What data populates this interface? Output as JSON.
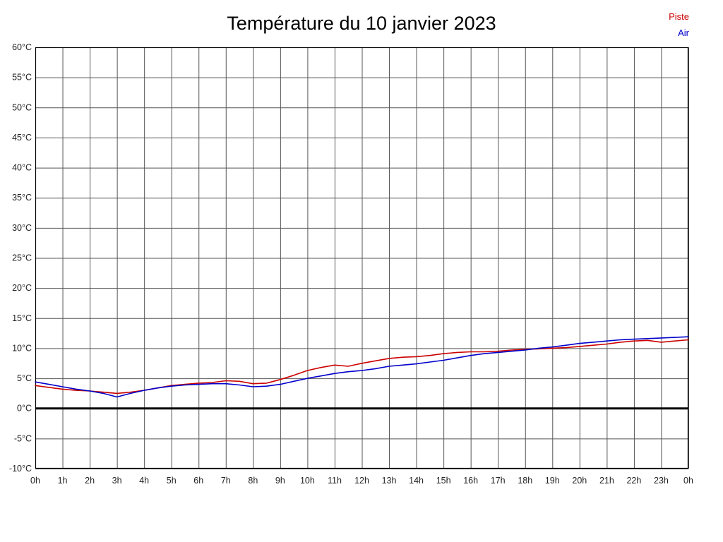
{
  "title": "Température du 10 janvier 2023",
  "legend": [
    {
      "label": "Piste",
      "color": "#cc0000"
    },
    {
      "label": "Air",
      "color": "#0000cc"
    }
  ],
  "colors": {
    "grid": "#555555",
    "axis_text": "#222222",
    "zero_line": "#000000",
    "border": "#000000"
  },
  "chart_data": {
    "type": "line",
    "title": "Température du 10 janvier 2023",
    "xlabel": "",
    "ylabel": "",
    "ylim": [
      -10,
      60
    ],
    "y_tick_step": 5,
    "y_tick_labels": [
      "60°C",
      "55°C",
      "50°C",
      "45°C",
      "40°C",
      "35°C",
      "30°C",
      "25°C",
      "20°C",
      "15°C",
      "10°C",
      "5°C",
      "0°C",
      "-5°C",
      "-10°C"
    ],
    "x_labels": [
      "0h",
      "1h",
      "2h",
      "3h",
      "4h",
      "5h",
      "6h",
      "7h",
      "8h",
      "9h",
      "10h",
      "11h",
      "12h",
      "13h",
      "14h",
      "15h",
      "16h",
      "17h",
      "18h",
      "19h",
      "20h",
      "21h",
      "22h",
      "23h",
      "0h"
    ],
    "x_step_hours": 0.5,
    "grid": true,
    "legend_position": "top-right",
    "series": [
      {
        "name": "Piste",
        "color": "#cc0000",
        "values": [
          3.8,
          3.5,
          3.2,
          3.0,
          2.9,
          2.7,
          2.5,
          2.7,
          3.0,
          3.4,
          3.8,
          4.0,
          4.2,
          4.3,
          4.6,
          4.5,
          4.1,
          4.2,
          4.8,
          5.5,
          6.3,
          6.8,
          7.2,
          7.0,
          7.5,
          7.9,
          8.3,
          8.5,
          8.6,
          8.8,
          9.1,
          9.3,
          9.4,
          9.4,
          9.5,
          9.7,
          9.8,
          9.9,
          10.0,
          10.1,
          10.3,
          10.5,
          10.7,
          11.0,
          11.2,
          11.3,
          11.0,
          11.2,
          11.4
        ]
      },
      {
        "name": "Air",
        "color": "#0000cc",
        "values": [
          4.4,
          4.0,
          3.6,
          3.2,
          2.9,
          2.5,
          1.9,
          2.5,
          3.0,
          3.4,
          3.7,
          3.9,
          4.0,
          4.1,
          4.1,
          3.9,
          3.6,
          3.7,
          4.0,
          4.5,
          5.0,
          5.4,
          5.8,
          6.1,
          6.3,
          6.6,
          7.0,
          7.2,
          7.4,
          7.7,
          8.0,
          8.4,
          8.8,
          9.1,
          9.3,
          9.5,
          9.7,
          10.0,
          10.2,
          10.5,
          10.8,
          11.0,
          11.2,
          11.4,
          11.5,
          11.6,
          11.7,
          11.8,
          11.9
        ]
      }
    ]
  }
}
